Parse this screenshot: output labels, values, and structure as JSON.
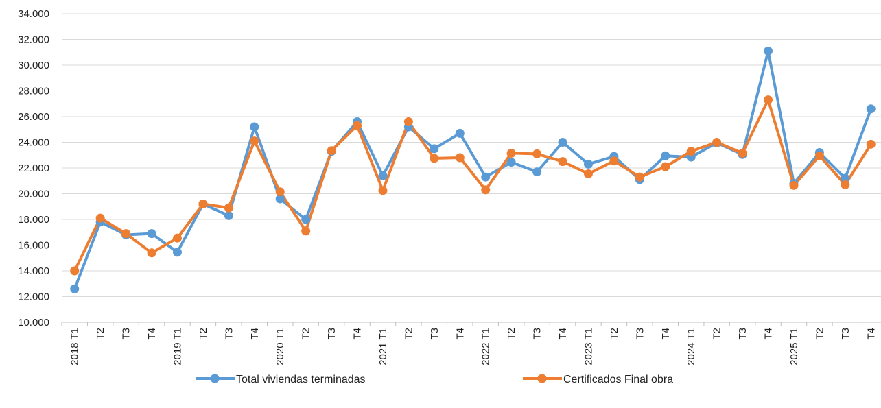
{
  "chart_data": {
    "type": "line",
    "title": "",
    "xlabel": "",
    "ylabel": "",
    "ylim": [
      10000,
      34000
    ],
    "ytick_step": 2000,
    "yticks": [
      "10.000",
      "12.000",
      "14.000",
      "16.000",
      "18.000",
      "20.000",
      "22.000",
      "24.000",
      "26.000",
      "28.000",
      "30.000",
      "32.000",
      "34.000"
    ],
    "grid": true,
    "legend_position": "bottom",
    "categories": [
      "2018 T1",
      "T2",
      "T3",
      "T4",
      "2019 T1",
      "T2",
      "T3",
      "T4",
      "2020 T1",
      "T2",
      "T3",
      "T4",
      "2021 T1",
      "T2",
      "T3",
      "T4",
      "2022 T1",
      "T2",
      "T3",
      "T4",
      "2023 T1",
      "T2",
      "T3",
      "T4",
      "2024 T1",
      "T2",
      "T3",
      "T4",
      "2025 T1",
      "T2",
      "T3",
      "T4"
    ],
    "series": [
      {
        "name": "Total viviendas terminadas",
        "color": "#5B9BD5",
        "values": [
          12600,
          17800,
          16800,
          16900,
          15450,
          19200,
          18300,
          25200,
          19600,
          18000,
          23300,
          25600,
          21400,
          25200,
          23500,
          24700,
          21300,
          22450,
          21700,
          24000,
          22300,
          22900,
          21100,
          22950,
          22850,
          23950,
          23050,
          31100,
          20800,
          23200,
          21200,
          26600
        ]
      },
      {
        "name": "Certificados Final obra",
        "color": "#ED7D31",
        "values": [
          14000,
          18100,
          16900,
          15400,
          16550,
          19200,
          18900,
          24100,
          20150,
          17100,
          23350,
          25300,
          20250,
          25600,
          22750,
          22800,
          20300,
          23150,
          23100,
          22500,
          21550,
          22550,
          21300,
          22100,
          23300,
          24000,
          23150,
          27300,
          20650,
          22950,
          20700,
          23850
        ]
      }
    ]
  }
}
